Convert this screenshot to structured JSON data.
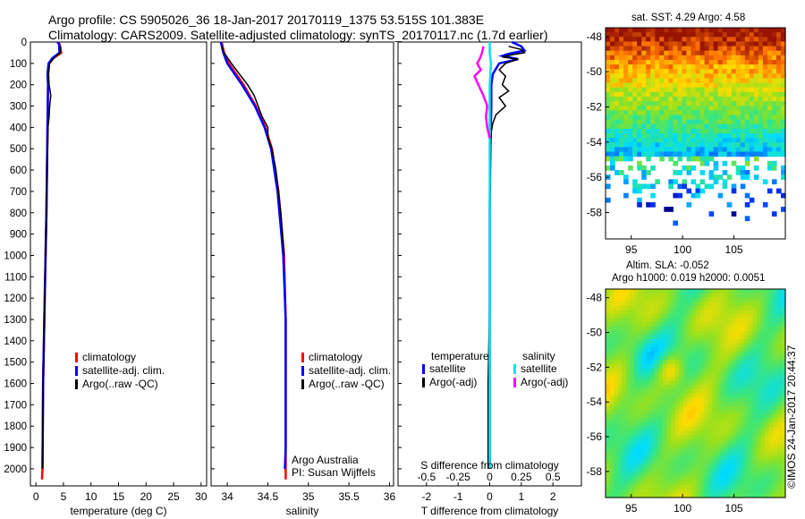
{
  "header": {
    "line1": "Argo profile: CS 5905026_36 18-Jan-2017 20170119_1375 53.515S 101.383E",
    "line2": "Climatology: CARS2009. Satellite-adjusted climatology: synTS_20170117.nc (1.7d earlier)"
  },
  "colors": {
    "climatology": "#ff0000",
    "satellite": "#0000ff",
    "argo": "#000000",
    "sat_salinity": "#00e5ee",
    "argo_salinity": "#ff00ff"
  },
  "chart_data": [
    {
      "type": "line",
      "id": "temperature",
      "xlabel": "temperature (deg C)",
      "ylabel": "",
      "xlim": [
        -1,
        31
      ],
      "ylim": [
        2080,
        0
      ],
      "xticks": [
        "0",
        "5",
        "10",
        "15",
        "20",
        "25",
        "30"
      ],
      "yticks": [
        "0",
        "100",
        "200",
        "300",
        "400",
        "500",
        "600",
        "700",
        "800",
        "900",
        "1000",
        "1100",
        "1200",
        "1300",
        "1400",
        "1500",
        "1600",
        "1700",
        "1800",
        "1900",
        "2000"
      ],
      "legend": {
        "position": "lower-center",
        "items": [
          "climatology",
          "satellite-adj. clim.",
          "Argo(..raw -QC)"
        ]
      },
      "series": [
        {
          "name": "climatology",
          "color": "#ff0000",
          "depth": [
            0,
            10,
            50,
            75,
            100,
            150,
            200,
            400,
            800,
            1200,
            1600,
            2000,
            2050
          ],
          "values": [
            4.0,
            4.3,
            4.6,
            3.2,
            2.4,
            2.2,
            2.2,
            2.1,
            1.9,
            1.6,
            1.3,
            1.2,
            1.1
          ]
        },
        {
          "name": "satellite-adj. clim.",
          "color": "#0000ff",
          "depth": [
            0,
            10,
            50,
            75,
            100,
            150,
            200,
            400,
            800,
            1200,
            1600,
            2000
          ],
          "values": [
            3.9,
            4.2,
            4.3,
            3.0,
            2.3,
            2.1,
            2.2,
            2.1,
            1.9,
            1.6,
            1.3,
            1.2
          ]
        },
        {
          "name": "Argo(..raw -QC)",
          "color": "#000000",
          "depth": [
            20,
            50,
            80,
            100,
            150,
            200,
            250,
            300,
            350,
            400,
            800,
            1200,
            1600,
            2000
          ],
          "values": [
            4.5,
            4.4,
            3.1,
            2.5,
            2.3,
            2.4,
            2.7,
            2.5,
            2.4,
            2.2,
            1.9,
            1.6,
            1.3,
            1.2
          ]
        }
      ]
    },
    {
      "type": "line",
      "id": "salinity",
      "xlabel": "salinity",
      "ylabel": "",
      "xlim": [
        33.8,
        36.05
      ],
      "ylim": [
        2080,
        0
      ],
      "xticks": [
        "34",
        "34.5",
        "35",
        "35.5",
        "36"
      ],
      "legend": {
        "position": "lower-right",
        "items": [
          "climatology",
          "satellite-adj. clim.",
          "Argo(..raw -QC)"
        ]
      },
      "annotation": [
        "Argo Australia",
        "PI: Susan Wijffels"
      ],
      "series": [
        {
          "name": "climatology",
          "color": "#ff0000",
          "depth": [
            0,
            50,
            100,
            200,
            300,
            400,
            500,
            700,
            1000,
            1300,
            1600,
            1900,
            2050
          ],
          "values": [
            33.93,
            33.96,
            34.02,
            34.2,
            34.35,
            34.47,
            34.55,
            34.63,
            34.7,
            34.72,
            34.72,
            34.72,
            34.72
          ]
        },
        {
          "name": "satellite-adj. clim.",
          "color": "#0000ff",
          "depth": [
            0,
            50,
            100,
            200,
            300,
            400,
            500,
            700,
            1000,
            1300,
            1600,
            1900,
            2000
          ],
          "values": [
            33.92,
            33.95,
            34.0,
            34.18,
            34.34,
            34.46,
            34.54,
            34.62,
            34.69,
            34.72,
            34.72,
            34.72,
            34.71
          ]
        },
        {
          "name": "Argo(..raw -QC)",
          "color": "#000000",
          "depth": [
            20,
            50,
            100,
            150,
            200,
            250,
            300,
            350,
            400,
            450,
            500,
            600,
            800,
            1000
          ],
          "values": [
            33.93,
            33.96,
            34.05,
            34.15,
            34.25,
            34.33,
            34.38,
            34.43,
            34.5,
            34.5,
            34.55,
            34.6,
            34.66,
            34.7
          ]
        }
      ]
    },
    {
      "type": "line",
      "id": "difference",
      "xlabel": "T difference from climatology",
      "xlabel_top": "S difference from climatology",
      "xlim": [
        -2.9,
        2.9
      ],
      "ylim": [
        2080,
        0
      ],
      "xticks": [
        "-2",
        "-1",
        "0",
        "1",
        "2"
      ],
      "xticks_top": [
        "-0.5",
        "-0.25",
        "0",
        "0.25",
        "0.5"
      ],
      "legend": {
        "position": "center",
        "headers": [
          "temperature",
          "salinity"
        ],
        "items": [
          "satellite",
          "Argo(-adj)",
          "satellite",
          "Argo(-adj)"
        ]
      },
      "series": [
        {
          "name": "temperature satellite",
          "color": "#0000ff",
          "depth": [
            0,
            20,
            40,
            55,
            65,
            80,
            100,
            150,
            200,
            300,
            500,
            800,
            1200,
            1600,
            2000
          ],
          "values": [
            0.7,
            1.0,
            1.1,
            0.6,
            0.4,
            0.9,
            0.3,
            0.1,
            0.05,
            0.05,
            0.02,
            0.0,
            0.0,
            0.0,
            0.0
          ]
        },
        {
          "name": "temperature Argo(-adj)",
          "color": "#000000",
          "depth": [
            20,
            35,
            50,
            60,
            70,
            80,
            100,
            130,
            160,
            200,
            230,
            260,
            300,
            340,
            380,
            420,
            500,
            800,
            1200,
            1600,
            2000
          ],
          "values": [
            0.6,
            1.0,
            1.1,
            0.7,
            0.4,
            0.9,
            0.5,
            0.3,
            0.5,
            0.4,
            0.6,
            0.3,
            0.5,
            0.2,
            0.1,
            0.05,
            0.03,
            0.0,
            0.0,
            -0.05,
            -0.05
          ]
        },
        {
          "name": "salinity satellite",
          "color": "#00e5ee",
          "depth": [
            0,
            50,
            100,
            200,
            400,
            800,
            1200,
            1600,
            2000
          ],
          "values": [
            0.0,
            0.0,
            0.01,
            0.0,
            0.0,
            0.0,
            0.0,
            0.0,
            0.0
          ]
        },
        {
          "name": "salinity Argo(-adj)",
          "color": "#ff00ff",
          "depth": [
            20,
            50,
            80,
            100,
            130,
            160,
            200,
            250,
            300,
            350,
            400,
            450
          ],
          "values": [
            -0.05,
            -0.06,
            -0.08,
            -0.1,
            -0.07,
            -0.12,
            -0.09,
            -0.05,
            -0.02,
            -0.03,
            -0.02,
            0.0
          ]
        }
      ]
    },
    {
      "type": "heatmap",
      "id": "sat-sst-map",
      "title": "sat. SST: 4.29  Argo: 4.58",
      "xlim": [
        92.5,
        110
      ],
      "ylim": [
        -59.5,
        -47.5
      ],
      "xticks": [
        "95",
        "100",
        "105"
      ],
      "yticks": [
        "-48",
        "-50",
        "-52",
        "-54",
        "-56",
        "-58"
      ]
    },
    {
      "type": "heatmap",
      "id": "altim-sla-map",
      "title": "Altim. SLA: -0.052",
      "subtitle": "Argo h1000: 0.019  h2000: 0.0051",
      "xlim": [
        92.5,
        110
      ],
      "ylim": [
        -59.5,
        -47.5
      ],
      "xticks": [
        "95",
        "100",
        "105"
      ],
      "yticks": [
        "-48",
        "-50",
        "-52",
        "-54",
        "-56",
        "-58"
      ]
    }
  ],
  "footer": {
    "stamp": "©IMOS 24-Jan-2017 20:44:37"
  }
}
